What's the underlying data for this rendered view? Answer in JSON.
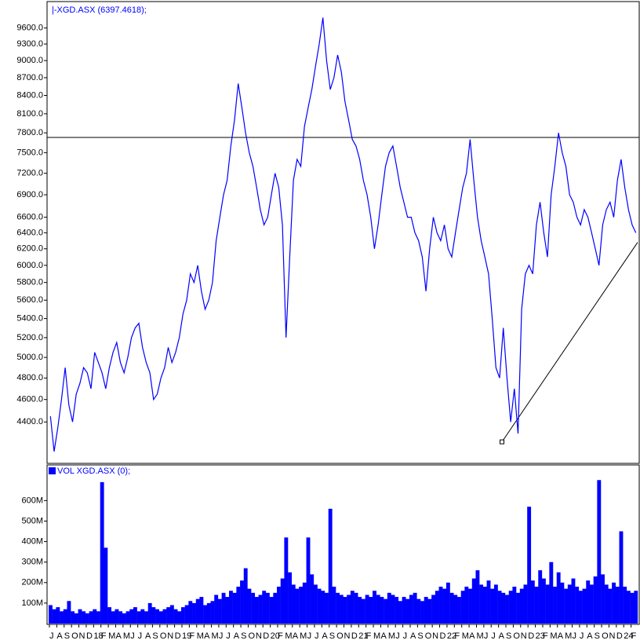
{
  "chart_data": [
    {
      "type": "line",
      "title": "|-XGD.ASX (6397.4618);",
      "log_scale": true,
      "color": "#0000ff",
      "ylim": [
        4060,
        10100
      ],
      "yticks": [
        {
          "value": 4400,
          "label": "4400.0"
        },
        {
          "value": 4600,
          "label": "4600.0"
        },
        {
          "value": 4800,
          "label": "4800.0"
        },
        {
          "value": 5000,
          "label": "5000.0"
        },
        {
          "value": 5200,
          "label": "5200.0"
        },
        {
          "value": 5400,
          "label": "5400.0"
        },
        {
          "value": 5600,
          "label": "5600.0"
        },
        {
          "value": 5800,
          "label": "5800.0"
        },
        {
          "value": 6000,
          "label": "6000.0"
        },
        {
          "value": 6200,
          "label": "6200.0"
        },
        {
          "value": 6400,
          "label": "6400.0"
        },
        {
          "value": 6600,
          "label": "6600.0"
        },
        {
          "value": 6900,
          "label": "6900.0"
        },
        {
          "value": 7200,
          "label": "7200.0"
        },
        {
          "value": 7500,
          "label": "7500.0"
        },
        {
          "value": 7800,
          "label": "7800.0"
        },
        {
          "value": 8100,
          "label": "8100.0"
        },
        {
          "value": 8400,
          "label": "8400.0"
        },
        {
          "value": 8700,
          "label": "8700.0"
        },
        {
          "value": 9000,
          "label": "9000.0"
        },
        {
          "value": 9300,
          "label": "9300.0"
        },
        {
          "value": 9600,
          "label": "9600.0"
        }
      ],
      "hline": 7730,
      "trendline": {
        "from": 4230,
        "to": 6280
      },
      "values": [
        4450,
        4150,
        4350,
        4600,
        4900,
        4550,
        4400,
        4650,
        4750,
        4900,
        4850,
        4700,
        5050,
        4950,
        4850,
        4700,
        4900,
        5050,
        5150,
        4950,
        4850,
        5000,
        5200,
        5300,
        5350,
        5100,
        4950,
        4850,
        4600,
        4650,
        4800,
        4900,
        5100,
        4950,
        5050,
        5200,
        5450,
        5600,
        5900,
        5800,
        6000,
        5700,
        5500,
        5600,
        5800,
        6300,
        6600,
        6900,
        7100,
        7600,
        8000,
        8600,
        8200,
        7800,
        7500,
        7300,
        7000,
        6700,
        6500,
        6600,
        6900,
        7200,
        7000,
        6500,
        5200,
        6100,
        7100,
        7400,
        7300,
        7900,
        8200,
        8500,
        8900,
        9300,
        9800,
        9000,
        8500,
        8700,
        9100,
        8800,
        8300,
        8000,
        7700,
        7600,
        7400,
        7100,
        6900,
        6600,
        6200,
        6500,
        6900,
        7300,
        7500,
        7600,
        7300,
        7000,
        6800,
        6600,
        6600,
        6400,
        6300,
        6100,
        5700,
        6200,
        6600,
        6400,
        6300,
        6500,
        6200,
        6100,
        6400,
        6700,
        7000,
        7200,
        7700,
        7100,
        6600,
        6300,
        6100,
        5900,
        5400,
        4900,
        4800,
        5300,
        4800,
        4400,
        4700,
        4300,
        5500,
        5900,
        6000,
        5900,
        6500,
        6800,
        6400,
        6100,
        6900,
        7300,
        7800,
        7500,
        7300,
        6900,
        6800,
        6600,
        6500,
        6700,
        6600,
        6400,
        6200,
        6000,
        6500,
        6700,
        6800,
        6600,
        7100,
        7400,
        7000,
        6700,
        6500,
        6400
      ]
    },
    {
      "type": "bar",
      "title": "VOL XGD.ASX (0);",
      "color": "#0000ff",
      "ylim": [
        0,
        770000000
      ],
      "yticks": [
        {
          "value": 100000000,
          "label": "100M"
        },
        {
          "value": 200000000,
          "label": "200M"
        },
        {
          "value": 300000000,
          "label": "300M"
        },
        {
          "value": 400000000,
          "label": "400M"
        },
        {
          "value": 500000000,
          "label": "500M"
        },
        {
          "value": 600000000,
          "label": "600M"
        }
      ],
      "x_labels": [
        "J",
        "A",
        "S",
        "O",
        "N",
        "D",
        "18",
        "F",
        "M",
        "A",
        "M",
        "J",
        "J",
        "A",
        "S",
        "O",
        "N",
        "D",
        "19",
        "F",
        "M",
        "A",
        "M",
        "J",
        "J",
        "A",
        "S",
        "O",
        "N",
        "D",
        "20",
        "F",
        "M",
        "A",
        "M",
        "J",
        "J",
        "A",
        "S",
        "O",
        "N",
        "D",
        "21",
        "F",
        "M",
        "A",
        "M",
        "J",
        "J",
        "A",
        "S",
        "O",
        "N",
        "D",
        "22",
        "F",
        "M",
        "A",
        "M",
        "J",
        "J",
        "A",
        "S",
        "O",
        "N",
        "D",
        "23",
        "F",
        "M",
        "A",
        "M",
        "J",
        "J",
        "A",
        "S",
        "O",
        "N",
        "D",
        "24",
        "F"
      ],
      "values": [
        90000000.0,
        70000000.0,
        80000000.0,
        60000000.0,
        70000000.0,
        110000000.0,
        60000000.0,
        50000000.0,
        70000000.0,
        60000000.0,
        50000000.0,
        60000000.0,
        70000000.0,
        60000000.0,
        690000000.0,
        370000000.0,
        80000000.0,
        60000000.0,
        70000000.0,
        60000000.0,
        50000000.0,
        60000000.0,
        70000000.0,
        80000000.0,
        60000000.0,
        70000000.0,
        60000000.0,
        100000000.0,
        80000000.0,
        70000000.0,
        60000000.0,
        70000000.0,
        80000000.0,
        90000000.0,
        70000000.0,
        60000000.0,
        80000000.0,
        90000000.0,
        110000000.0,
        100000000.0,
        120000000.0,
        130000000.0,
        90000000.0,
        100000000.0,
        110000000.0,
        140000000.0,
        120000000.0,
        150000000.0,
        130000000.0,
        160000000.0,
        150000000.0,
        180000000.0,
        210000000.0,
        270000000.0,
        170000000.0,
        150000000.0,
        130000000.0,
        140000000.0,
        160000000.0,
        150000000.0,
        130000000.0,
        150000000.0,
        180000000.0,
        220000000.0,
        420000000.0,
        250000000.0,
        190000000.0,
        170000000.0,
        180000000.0,
        200000000.0,
        420000000.0,
        240000000.0,
        190000000.0,
        170000000.0,
        160000000.0,
        150000000.0,
        560000000.0,
        180000000.0,
        150000000.0,
        140000000.0,
        130000000.0,
        140000000.0,
        160000000.0,
        150000000.0,
        130000000.0,
        120000000.0,
        140000000.0,
        130000000.0,
        160000000.0,
        140000000.0,
        130000000.0,
        120000000.0,
        150000000.0,
        140000000.0,
        130000000.0,
        110000000.0,
        130000000.0,
        120000000.0,
        140000000.0,
        150000000.0,
        120000000.0,
        110000000.0,
        130000000.0,
        120000000.0,
        140000000.0,
        160000000.0,
        180000000.0,
        170000000.0,
        200000000.0,
        150000000.0,
        140000000.0,
        130000000.0,
        160000000.0,
        180000000.0,
        170000000.0,
        220000000.0,
        260000000.0,
        190000000.0,
        180000000.0,
        210000000.0,
        170000000.0,
        190000000.0,
        160000000.0,
        150000000.0,
        140000000.0,
        160000000.0,
        180000000.0,
        150000000.0,
        170000000.0,
        190000000.0,
        570000000.0,
        210000000.0,
        180000000.0,
        260000000.0,
        220000000.0,
        190000000.0,
        300000000.0,
        180000000.0,
        250000000.0,
        200000000.0,
        170000000.0,
        190000000.0,
        220000000.0,
        180000000.0,
        160000000.0,
        170000000.0,
        210000000.0,
        190000000.0,
        230000000.0,
        700000000.0,
        240000000.0,
        190000000.0,
        170000000.0,
        200000000.0,
        180000000.0,
        450000000.0,
        180000000.0,
        160000000.0,
        150000000.0,
        160000000.0
      ]
    }
  ]
}
